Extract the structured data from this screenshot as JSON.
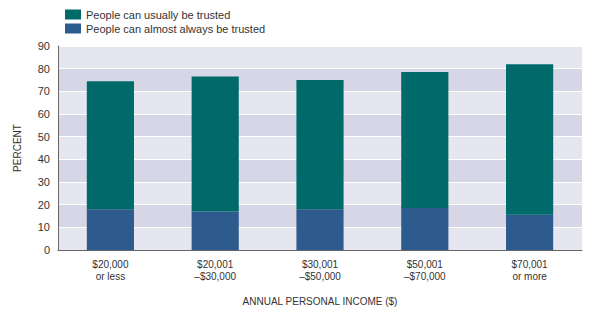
{
  "chart_data": {
    "type": "bar",
    "stacked": true,
    "x_label": "ANNUAL PERSONAL INCOME ($)",
    "y_label": "PERCENT",
    "categories": [
      "$20,000\nor less",
      "$20,001\n–$30,000",
      "$30,001\n–$50,000",
      "$50,001\n–$70,000",
      "$70,001\nor more"
    ],
    "series": [
      {
        "name": "People can almost always be trusted",
        "color": "#2e5b8e",
        "values": [
          18,
          17,
          18,
          18.5,
          15.5
        ]
      },
      {
        "name": "People can usually be trusted",
        "color": "#006a6a",
        "values": [
          56.5,
          59.5,
          57,
          60,
          66.5
        ]
      }
    ],
    "ylim": [
      0,
      90
    ],
    "yticks": [
      0,
      10,
      20,
      30,
      40,
      50,
      60,
      70,
      80,
      90
    ],
    "grid": true,
    "legend": "top-left"
  }
}
